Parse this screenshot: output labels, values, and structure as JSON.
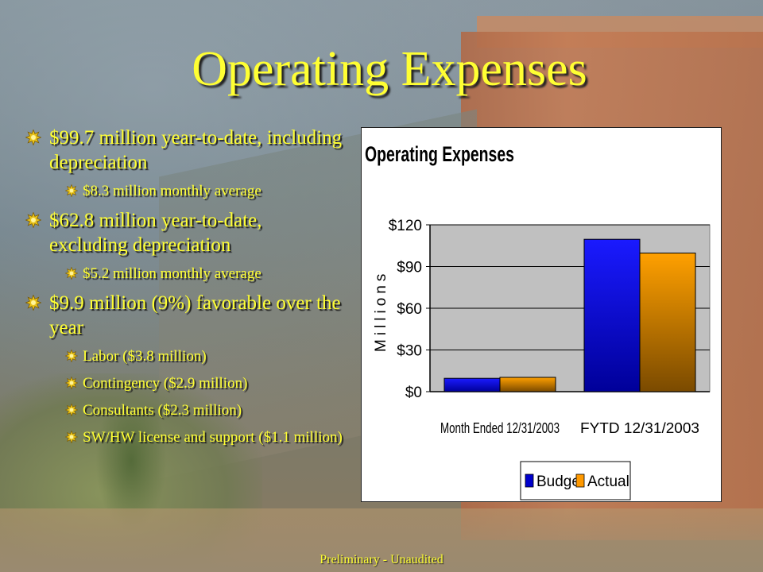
{
  "slide": {
    "title": "Operating Expenses",
    "footer": "Preliminary - Unaudited"
  },
  "bullets": [
    {
      "level": 1,
      "text": "$99.7 million year-to-date, including depreciation"
    },
    {
      "level": 2,
      "text": "$8.3 million monthly average"
    },
    {
      "level": 1,
      "text": "$62.8 million year-to-date, excluding depreciation"
    },
    {
      "level": 2,
      "text": "$5.2 million monthly average"
    },
    {
      "level": 1,
      "text": "$9.9 million (9%) favorable over the year"
    },
    {
      "level": 2,
      "text": "Labor ($3.8 million)"
    },
    {
      "level": 2,
      "text": "Contingency ($2.9 million)"
    },
    {
      "level": 2,
      "text": "Consultants ($2.3 million)"
    },
    {
      "level": 2,
      "text": "SW/HW license and support ($1.1 million)"
    }
  ],
  "colors": {
    "text_accent": "#ffff33",
    "budget": "#0000cc",
    "actual": "#ff9900",
    "plot_bg": "#c0c0c0"
  },
  "chart_data": {
    "type": "bar",
    "title": "Operating Expenses",
    "ylabel": "Millions",
    "categories": [
      "Month Ended 12/31/2003",
      "FYTD 12/31/2003"
    ],
    "series": [
      {
        "name": "Budget",
        "values": [
          9.6,
          109.6
        ]
      },
      {
        "name": "Actual",
        "values": [
          10.3,
          99.7
        ]
      }
    ],
    "yticks": [
      "$0",
      "$30",
      "$60",
      "$90",
      "$120"
    ],
    "ytick_values": [
      0,
      30,
      60,
      90,
      120
    ],
    "ylim": [
      0,
      120
    ],
    "grid": true,
    "legend": "bottom"
  }
}
